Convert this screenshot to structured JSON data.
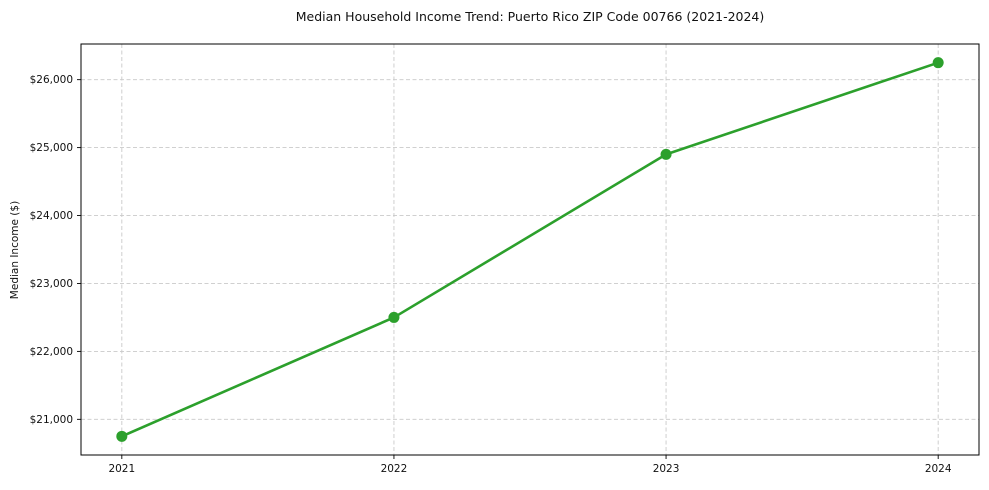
{
  "chart_data": {
    "type": "line",
    "title": "Median Household Income Trend: Puerto Rico ZIP Code 00766 (2021-2024)",
    "xlabel": "",
    "ylabel": "Median Income ($)",
    "x": [
      2021,
      2022,
      2023,
      2024
    ],
    "xticklabels": [
      "2021",
      "2022",
      "2023",
      "2024"
    ],
    "yticks": [
      21000,
      22000,
      23000,
      24000,
      25000,
      26000
    ],
    "yticklabels": [
      "$21,000",
      "$22,000",
      "$23,000",
      "$24,000",
      "$25,000",
      "$26,000"
    ],
    "series": [
      {
        "name": "Median Household Income",
        "values": [
          20750,
          22500,
          24900,
          26250
        ],
        "color": "#2ca02c"
      }
    ],
    "xlim": [
      2020.85,
      2024.15
    ],
    "ylim": [
      20475,
      26525
    ],
    "grid": true,
    "grid_style": "dashed",
    "grid_color": "#c9c9c9",
    "legend": false,
    "background_color": "#ffffff",
    "spine_color": "#000000"
  }
}
